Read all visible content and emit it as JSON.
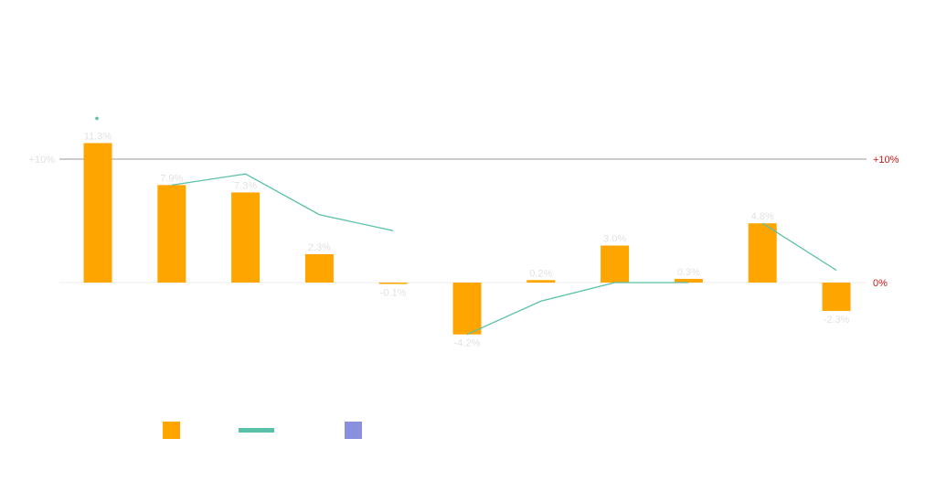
{
  "chart_data": {
    "type": "bar",
    "colors": {
      "bar": "#FFA500",
      "line": "#5BC0A8",
      "third_series": "#8A8FDE",
      "refline": "#9a9a9a",
      "right_axis_text": "#C41A1A",
      "left_axis_text": "#E2E2E2"
    },
    "left_axis": {
      "ticks": [
        {
          "value": 10,
          "label": "+10%"
        }
      ]
    },
    "right_axis": {
      "ticks": [
        {
          "value": 10,
          "label": "+10%"
        },
        {
          "value": 0,
          "label": "0%"
        }
      ]
    },
    "ylim": [
      -10,
      15
    ],
    "series": [
      {
        "type": "bar",
        "values": [
          11.3,
          7.9,
          7.3,
          2.3,
          -0.1,
          -4.2,
          0.2,
          3.0,
          0.3,
          4.8,
          -2.3
        ],
        "labels": [
          "11.3%",
          "7.9%",
          "7.3%",
          "2.3%",
          "-0.1%",
          "-4.2%",
          "0.2%",
          "3.0%",
          "0.3%",
          "4.8%",
          "-2.3%"
        ]
      },
      {
        "type": "line",
        "values": [
          13.3,
          7.9,
          8.8,
          5.5,
          4.2,
          -4.2,
          -1.5,
          0.0,
          0.0,
          4.8,
          1.0
        ]
      }
    ],
    "legend": [
      {
        "marker": "square",
        "color": "#FFA500"
      },
      {
        "marker": "line",
        "color": "#5BC0A8"
      },
      {
        "marker": "square",
        "color": "#8A8FDE"
      }
    ]
  }
}
